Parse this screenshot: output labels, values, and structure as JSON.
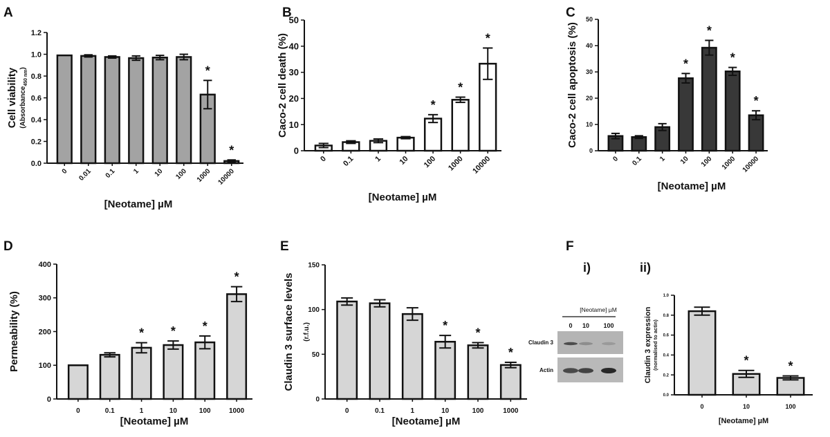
{
  "chart_data": [
    {
      "panel": "A",
      "type": "bar",
      "categories": [
        "0",
        "0.01",
        "0.1",
        "1",
        "10",
        "100",
        "1000",
        "10000"
      ],
      "values": [
        0.99,
        0.985,
        0.975,
        0.965,
        0.97,
        0.975,
        0.63,
        0.02
      ],
      "errors": [
        0,
        0.01,
        0.01,
        0.02,
        0.02,
        0.025,
        0.13,
        0.01
      ],
      "significant": [
        false,
        false,
        false,
        false,
        false,
        false,
        true,
        true
      ],
      "ylabel": "Cell viability",
      "ylabel_sub_main": "(Absorbance",
      "ylabel_sub_subscript": "450 nm",
      "ylabel_sub_end": ")",
      "xlabel": "[Neotame] µM",
      "ylim": [
        0,
        1.2
      ],
      "yticks": [
        "0.0",
        "0.2",
        "0.4",
        "0.6",
        "0.8",
        "1.0",
        "1.2"
      ],
      "bar_color": "#a3a3a3"
    },
    {
      "panel": "B",
      "type": "bar",
      "categories": [
        "0",
        "0.1",
        "1",
        "10",
        "100",
        "1000",
        "10000"
      ],
      "values": [
        2,
        3.3,
        3.8,
        5,
        12.3,
        19.5,
        33.3
      ],
      "errors": [
        0.8,
        0.5,
        0.7,
        0.4,
        1.5,
        1,
        6
      ],
      "significant": [
        false,
        false,
        false,
        false,
        true,
        true,
        true
      ],
      "ylabel": "Caco-2 cell death (%)",
      "xlabel": "[Neotame] µM",
      "ylim": [
        0,
        50
      ],
      "yticks": [
        "0",
        "10",
        "20",
        "30",
        "40",
        "50"
      ],
      "bar_color": "#ffffff"
    },
    {
      "panel": "C",
      "type": "bar",
      "categories": [
        "0",
        "0.1",
        "1",
        "10",
        "100",
        "1000",
        "10000"
      ],
      "values": [
        5.6,
        5.2,
        9,
        27.6,
        39.2,
        30.2,
        13.5
      ],
      "errors": [
        1,
        0.5,
        1.3,
        1.8,
        2.8,
        1.5,
        1.7
      ],
      "significant": [
        false,
        false,
        false,
        true,
        true,
        true,
        true
      ],
      "ylabel": "Caco-2 cell apoptosis (%)",
      "xlabel": "[Neotame] µM",
      "ylim": [
        0,
        50
      ],
      "yticks": [
        "0",
        "10",
        "20",
        "30",
        "40",
        "50"
      ],
      "bar_color": "#383838"
    },
    {
      "panel": "D",
      "type": "bar",
      "categories": [
        "0",
        "0.1",
        "1",
        "10",
        "100",
        "1000"
      ],
      "values": [
        100,
        131,
        152,
        160,
        168,
        311
      ],
      "errors": [
        0,
        6,
        15,
        12,
        19,
        22
      ],
      "significant": [
        false,
        false,
        true,
        true,
        true,
        true
      ],
      "ylabel": "Permeability (%)",
      "xlabel": "[Neotame] µM",
      "ylim": [
        0,
        400
      ],
      "yticks": [
        "0",
        "100",
        "200",
        "300",
        "400"
      ],
      "bar_color": "#d6d6d6"
    },
    {
      "panel": "E",
      "type": "bar",
      "categories": [
        "0",
        "0.1",
        "1",
        "10",
        "100",
        "1000"
      ],
      "values": [
        109,
        107,
        95,
        64,
        60,
        38
      ],
      "errors": [
        4,
        4,
        7,
        7,
        3,
        3
      ],
      "significant": [
        false,
        false,
        false,
        true,
        true,
        true
      ],
      "ylabel": "Claudin 3 surface levels",
      "ylabel_sub": "(r.f.u.)",
      "xlabel": "[Neotame] µM",
      "ylim": [
        0,
        150
      ],
      "yticks": [
        "0",
        "50",
        "100",
        "150"
      ],
      "bar_color": "#d6d6d6"
    },
    {
      "panel": "F",
      "subpanel": "ii)",
      "type": "bar",
      "categories": [
        "0",
        "10",
        "100"
      ],
      "values": [
        0.84,
        0.21,
        0.17
      ],
      "errors": [
        0.04,
        0.035,
        0.02
      ],
      "significant": [
        false,
        true,
        true
      ],
      "ylabel": "Claudin 3 expression",
      "ylabel_sub": "(normalised to actin)",
      "xlabel": "[Neotame] µM",
      "ylim": [
        0,
        1.0
      ],
      "yticks": [
        "0.0",
        "0.2",
        "0.4",
        "0.6",
        "0.8",
        "1.0"
      ],
      "bar_color": "#d6d6d6"
    }
  ],
  "blot": {
    "subpanel": "i)",
    "header": "[Neotame] µM",
    "lanes": [
      "0",
      "10",
      "100"
    ],
    "rows": [
      "Claudin 3",
      "Actin"
    ],
    "claudin_intensity": [
      0.8,
      0.3,
      0.2
    ],
    "actin_intensity": [
      0.75,
      0.8,
      1.0
    ]
  },
  "significance_mark": "*"
}
